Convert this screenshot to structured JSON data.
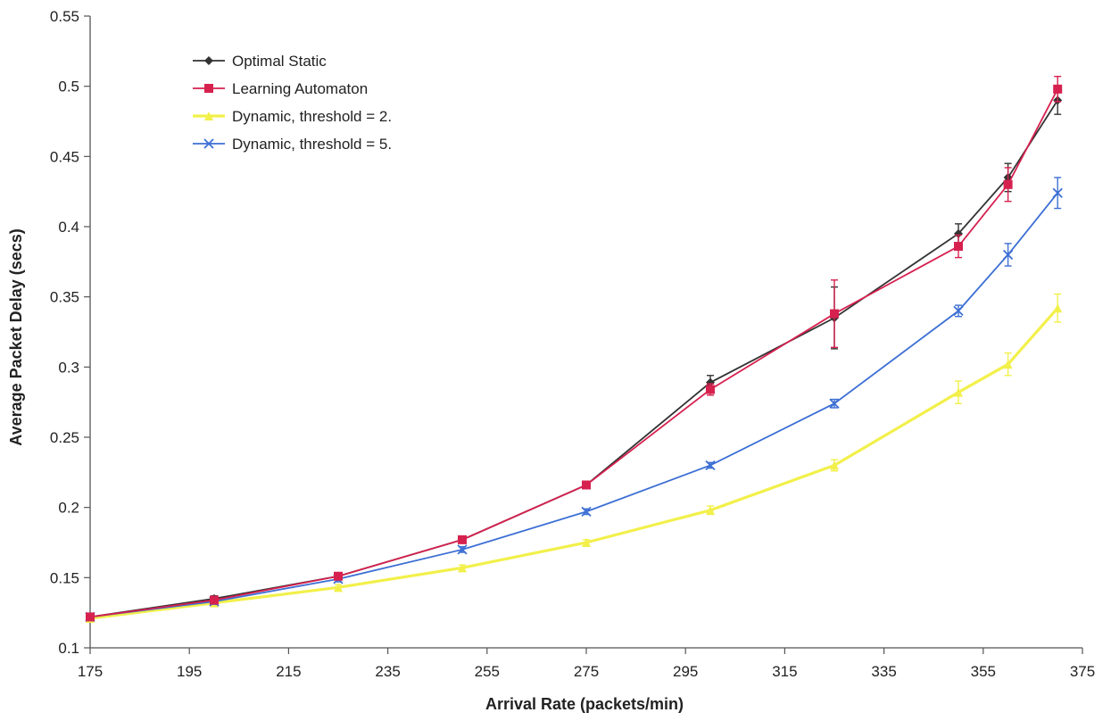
{
  "chart_data": {
    "type": "line",
    "title": "",
    "xlabel": "Arrival Rate (packets/min)",
    "ylabel": "Average Packet Delay (secs)",
    "xlim": [
      175,
      375
    ],
    "ylim": [
      0.1,
      0.55
    ],
    "x_ticks": [
      175,
      195,
      215,
      235,
      255,
      275,
      295,
      315,
      335,
      355,
      375
    ],
    "y_ticks": [
      0.1,
      0.15,
      0.2,
      0.25,
      0.3,
      0.35,
      0.4,
      0.45,
      0.5,
      0.55
    ],
    "y_tick_labels": [
      "0.1",
      "0.15",
      "0.2",
      "0.25",
      "0.3",
      "0.35",
      "0.4",
      "0.45",
      "0.5",
      "0.55"
    ],
    "grid": false,
    "legend_position": "top-left",
    "x": [
      175,
      200,
      225,
      250,
      275,
      300,
      325,
      350,
      360,
      370
    ],
    "series": [
      {
        "name": "Optimal Static",
        "color": "#333333",
        "marker": "diamond",
        "values": [
          0.122,
          0.135,
          0.151,
          0.177,
          0.216,
          0.289,
          0.335,
          0.395,
          0.435,
          0.49
        ],
        "error": [
          0.002,
          0.002,
          0.002,
          0.002,
          0.002,
          0.005,
          0.022,
          0.007,
          0.01,
          0.01
        ]
      },
      {
        "name": "Learning Automaton",
        "color": "#d6214f",
        "marker": "square",
        "values": [
          0.122,
          0.134,
          0.151,
          0.177,
          0.216,
          0.284,
          0.338,
          0.386,
          0.43,
          0.498
        ],
        "error": [
          0.002,
          0.002,
          0.002,
          0.002,
          0.002,
          0.004,
          0.024,
          0.008,
          0.012,
          0.009
        ]
      },
      {
        "name": "Dynamic, threshold = 2.",
        "color": "#f2f04a",
        "marker": "triangle",
        "values": [
          0.121,
          0.132,
          0.143,
          0.157,
          0.175,
          0.198,
          0.23,
          0.282,
          0.302,
          0.342
        ],
        "error": [
          0.002,
          0.002,
          0.002,
          0.002,
          0.002,
          0.003,
          0.004,
          0.008,
          0.008,
          0.01
        ]
      },
      {
        "name": "Dynamic, threshold = 5.",
        "color": "#3c6fd4",
        "marker": "x",
        "values": [
          0.122,
          0.133,
          0.149,
          0.17,
          0.197,
          0.23,
          0.274,
          0.34,
          0.38,
          0.424
        ],
        "error": [
          0.002,
          0.002,
          0.002,
          0.002,
          0.002,
          0.002,
          0.003,
          0.004,
          0.008,
          0.011
        ]
      }
    ]
  }
}
